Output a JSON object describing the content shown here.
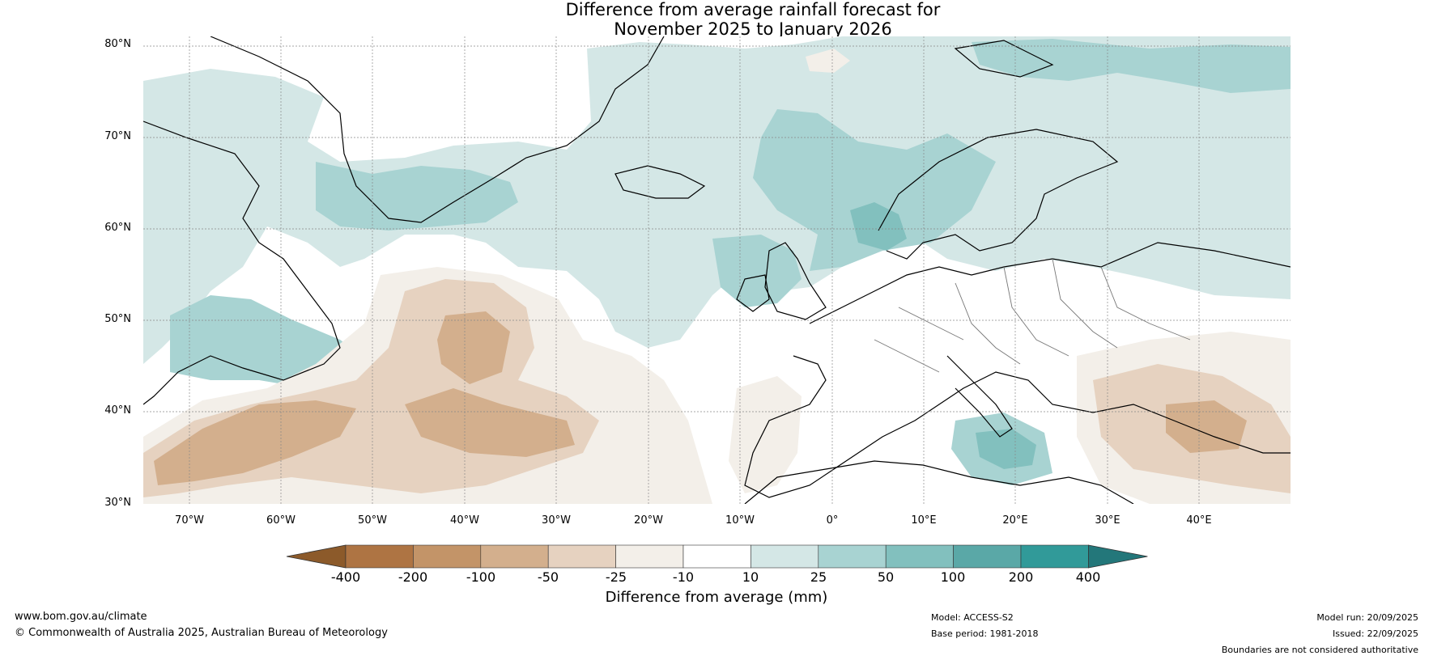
{
  "title": {
    "line1": "Difference from average rainfall forecast for",
    "line2": "November 2025 to January 2026"
  },
  "latitude_labels": [
    "80°N",
    "70°N",
    "60°N",
    "50°N",
    "40°N",
    "30°N"
  ],
  "longitude_labels": [
    "70°W",
    "60°W",
    "50°W",
    "40°W",
    "30°W",
    "20°W",
    "10°W",
    "0°",
    "10°E",
    "20°E",
    "30°E",
    "40°E"
  ],
  "colorbar": {
    "title": "Difference from average (mm)",
    "tick_labels": [
      "-400",
      "-200",
      "-100",
      "-50",
      "-25",
      "-10",
      "10",
      "25",
      "50",
      "100",
      "200",
      "400"
    ],
    "colors": [
      "#8c5a2a",
      "#ae7443",
      "#c39468",
      "#d3af8d",
      "#e6d2c0",
      "#f3efe9",
      "#ffffff",
      "#d4e7e6",
      "#a8d3d2",
      "#82c0be",
      "#5aa8a7",
      "#319a99",
      "#23777a"
    ]
  },
  "footer": {
    "website": "www.bom.gov.au/climate",
    "copyright": "© Commonwealth of Australia 2025, Australian Bureau of Meteorology",
    "model": "Model: ACCESS-S2",
    "base_period": "Base period: 1981-2018",
    "model_run": "Model run: 20/09/2025",
    "issued": "Issued: 22/09/2025",
    "disclaimer": "Boundaries are not considered authoritative"
  }
}
